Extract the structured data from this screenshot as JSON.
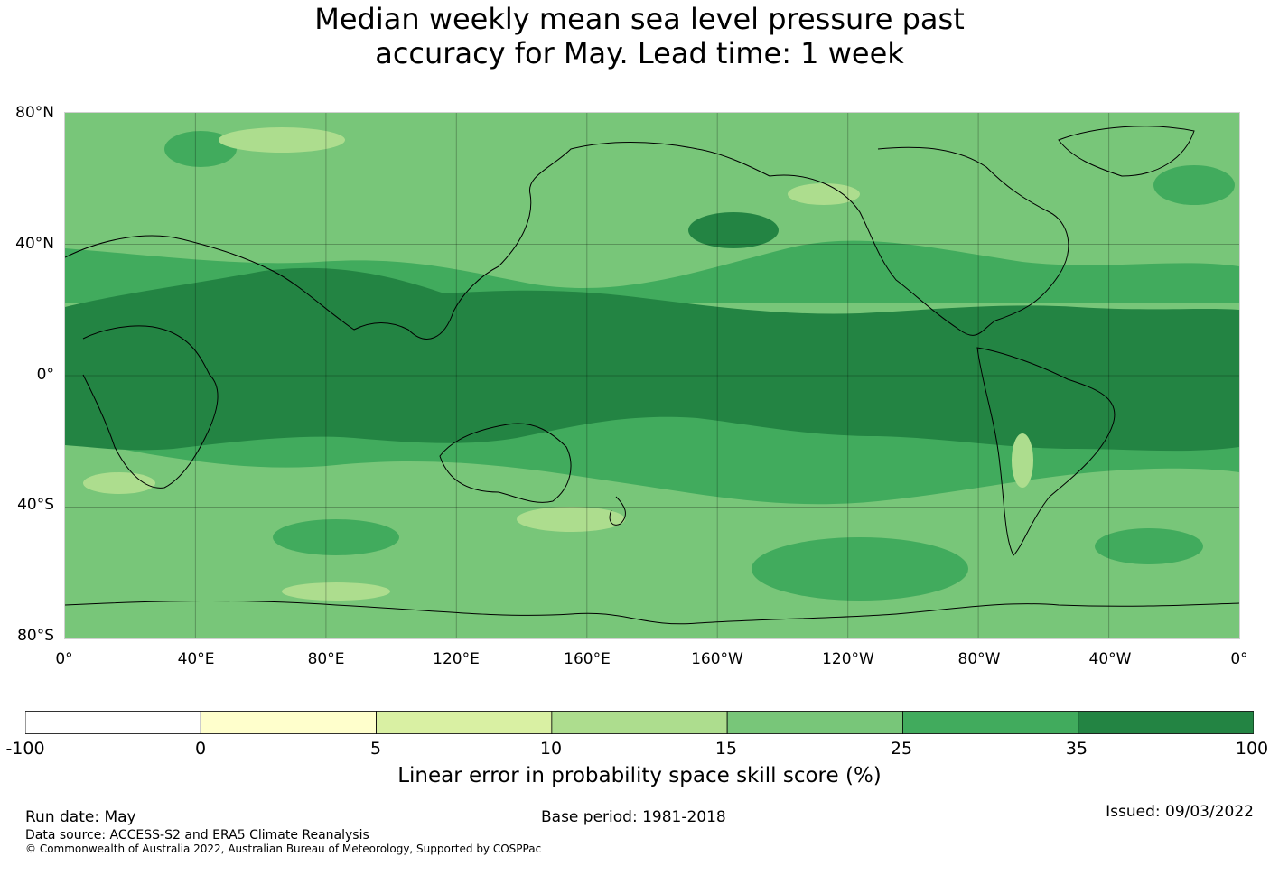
{
  "title": {
    "line1": "Median weekly mean sea level pressure past",
    "line2": "accuracy for May. Lead time: 1 week"
  },
  "map": {
    "lat_labels": [
      "80°N",
      "40°N",
      "0°",
      "40°S",
      "80°S"
    ],
    "lon_labels": [
      "0°",
      "40°E",
      "80°E",
      "120°E",
      "160°E",
      "160°W",
      "120°W",
      "80°W",
      "40°W",
      "0°"
    ],
    "lon_range": [
      0,
      360
    ],
    "lat_range": [
      -80,
      80
    ],
    "dominant_bands": [
      {
        "lat_from": 80,
        "lat_to": 50,
        "category": "15 to 25"
      },
      {
        "lat_from": 50,
        "lat_to": 20,
        "category": "25 to 35"
      },
      {
        "lat_from": 20,
        "lat_to": -20,
        "category": "35 to 100"
      },
      {
        "lat_from": -20,
        "lat_to": -80,
        "category": "15 to 25"
      }
    ]
  },
  "colorbar": {
    "ticks": [
      "-100",
      "0",
      "5",
      "10",
      "15",
      "25",
      "35",
      "100"
    ],
    "colors": [
      "#ffffff",
      "#ffffcc",
      "#d9f0a3",
      "#addd8e",
      "#78c679",
      "#41ab5d",
      "#238443"
    ],
    "label": "Linear error in probability space skill score (%)"
  },
  "footer": {
    "run_date": "Run date: May",
    "base_period": "Base period: 1981-2018",
    "issued": "Issued: 09/03/2022",
    "data_source": "Data source: ACCESS-S2 and ERA5 Climate Reanalysis",
    "copyright": "© Commonwealth of Australia 2022, Australian Bureau of Meteorology, Supported by COSPPac"
  }
}
